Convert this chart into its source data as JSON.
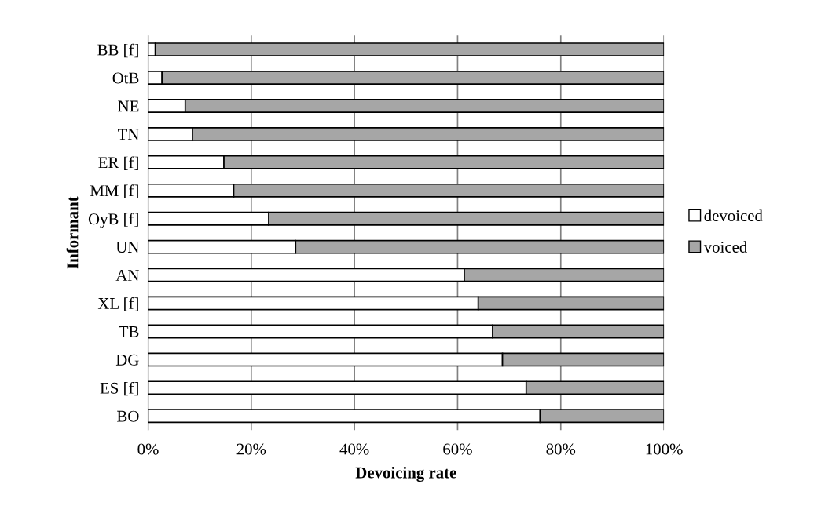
{
  "chart_data": {
    "type": "bar",
    "orientation": "horizontal",
    "stacked": true,
    "xlabel": "Devoicing rate",
    "ylabel": "Informant",
    "categories": [
      "BB [f]",
      "OtB",
      "NE",
      "TN",
      "ER [f]",
      "MM [f]",
      "OyB [f]",
      "UN",
      "AN",
      "XL [f]",
      "TB",
      "DG",
      "ES [f]",
      "BO"
    ],
    "series": [
      {
        "name": "devoiced",
        "color": "#ffffff",
        "values": [
          1.4,
          2.7,
          7.2,
          8.6,
          14.7,
          16.6,
          23.4,
          28.6,
          61.3,
          64.0,
          66.8,
          68.7,
          73.3,
          76.0
        ]
      },
      {
        "name": "voiced",
        "color": "#a6a6a6",
        "values": [
          98.6,
          97.3,
          92.8,
          91.4,
          85.3,
          83.4,
          76.6,
          71.4,
          38.7,
          36.0,
          33.2,
          31.3,
          26.7,
          24.0
        ]
      }
    ],
    "xlim": [
      0,
      100
    ],
    "xticks": [
      {
        "value": 0,
        "label": "0%"
      },
      {
        "value": 20,
        "label": "20%"
      },
      {
        "value": 40,
        "label": "40%"
      },
      {
        "value": 60,
        "label": "60%"
      },
      {
        "value": 80,
        "label": "80%"
      },
      {
        "value": 100,
        "label": "100%"
      }
    ],
    "grid": "x",
    "legend": "right"
  }
}
